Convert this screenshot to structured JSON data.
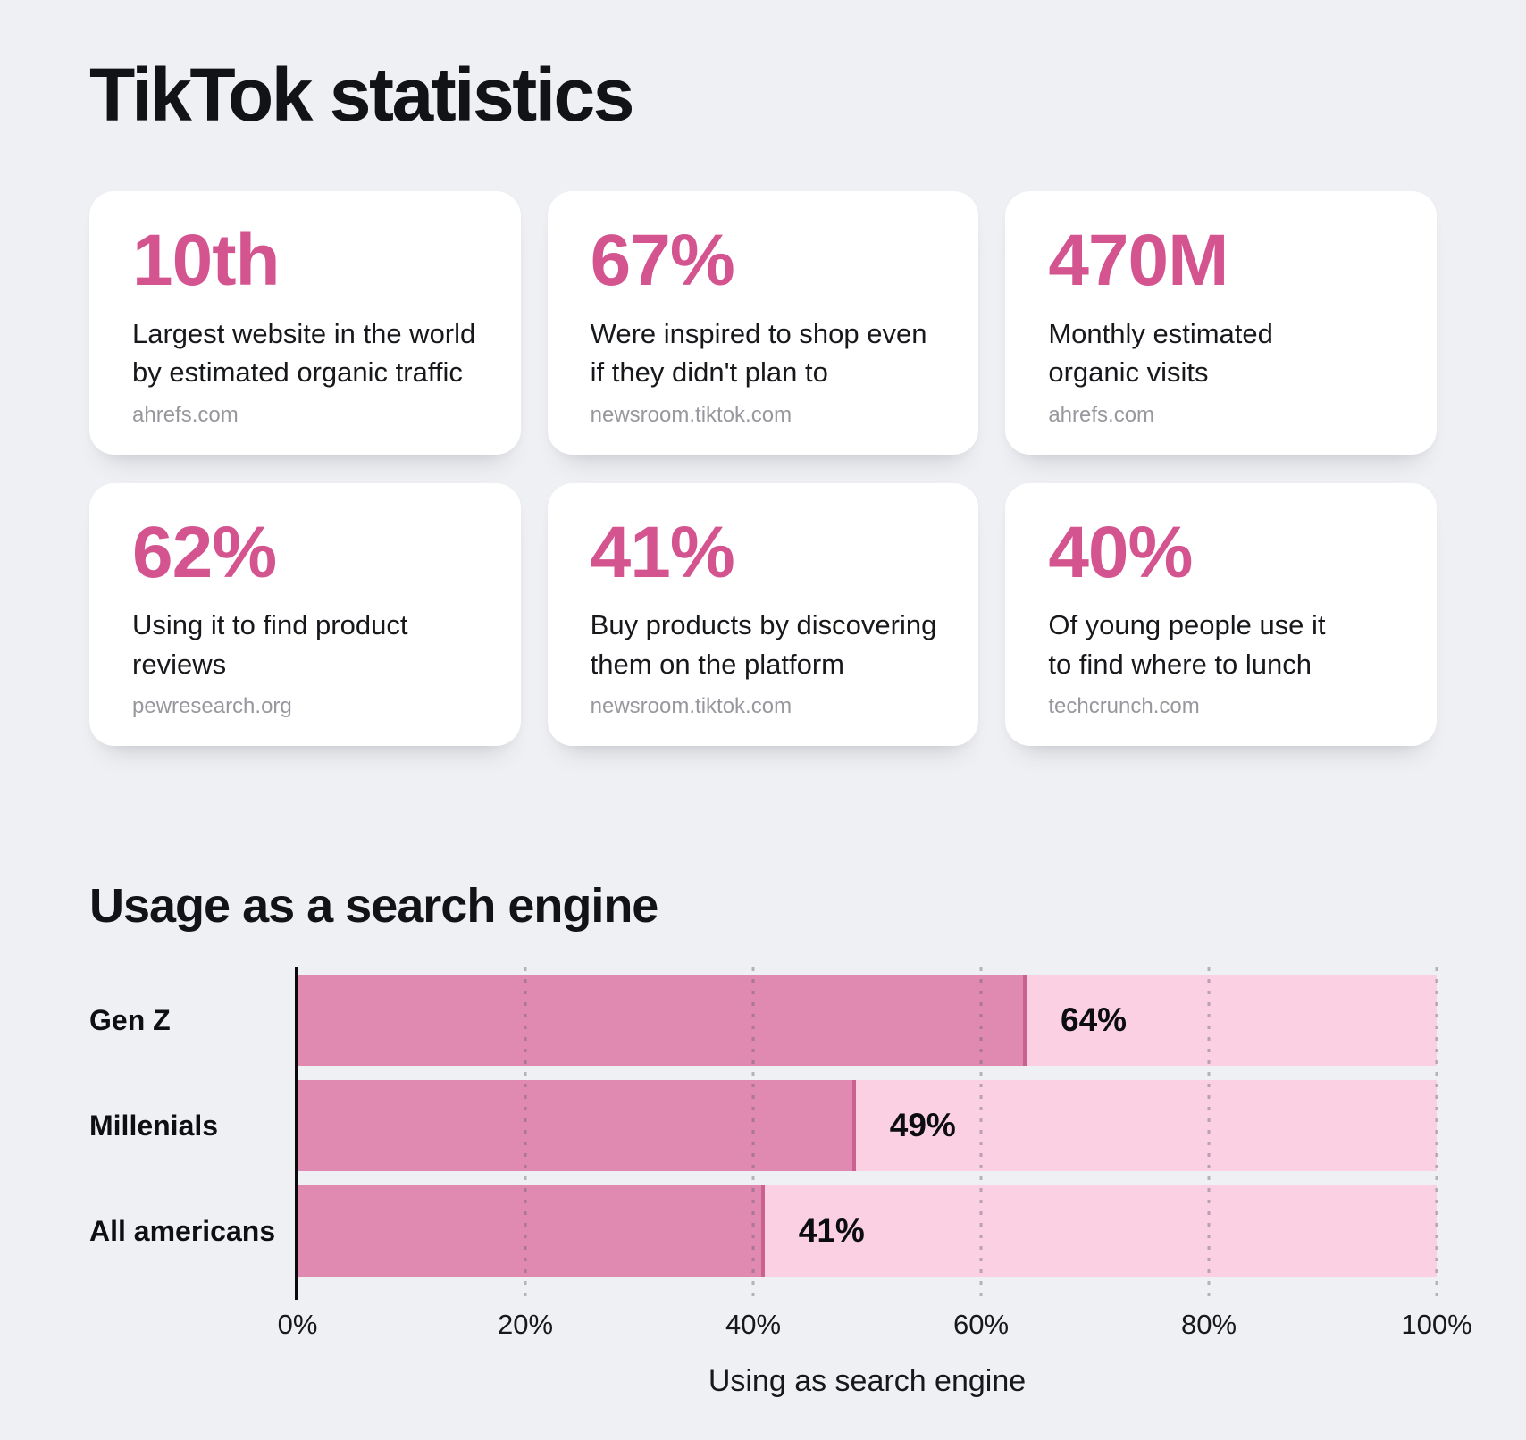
{
  "page": {
    "title": "TikTok statistics",
    "background": "#eff0f3",
    "accent": "#d4548f"
  },
  "cards": [
    {
      "value": "10th",
      "text": "Largest website in the world\nby estimated organic traffic",
      "source": "ahrefs.com"
    },
    {
      "value": "67%",
      "text": "Were inspired to shop even\nif they didn't plan to",
      "source": "newsroom.tiktok.com"
    },
    {
      "value": "470M",
      "text": "Monthly estimated\norganic visits",
      "source": "ahrefs.com"
    },
    {
      "value": "62%",
      "text": "Using it to find product\nreviews",
      "source": "pewresearch.org"
    },
    {
      "value": "41%",
      "text": "Buy products by discovering\nthem on the platform",
      "source": "newsroom.tiktok.com"
    },
    {
      "value": "40%",
      "text": "Of young people use it\nto find where to lunch",
      "source": "techcrunch.com"
    }
  ],
  "section": {
    "heading": "Usage as a search engine"
  },
  "chart_data": {
    "type": "bar",
    "orientation": "horizontal",
    "title": "Usage as a search engine",
    "categories": [
      "Gen Z",
      "Millenials",
      "All americans"
    ],
    "values": [
      64,
      49,
      41
    ],
    "value_labels": [
      "64%",
      "49%",
      "41%"
    ],
    "x_ticks": [
      "0%",
      "20%",
      "40%",
      "60%",
      "80%",
      "100%"
    ],
    "xlim": [
      0,
      100
    ],
    "xlabel": "Using as search engine",
    "grid": "dotted vertical gridlines every 20%",
    "legend": "none",
    "bar_color": "#e089b1",
    "bar_edge_color": "#c9628f",
    "track_color": "#fbd0e3"
  }
}
